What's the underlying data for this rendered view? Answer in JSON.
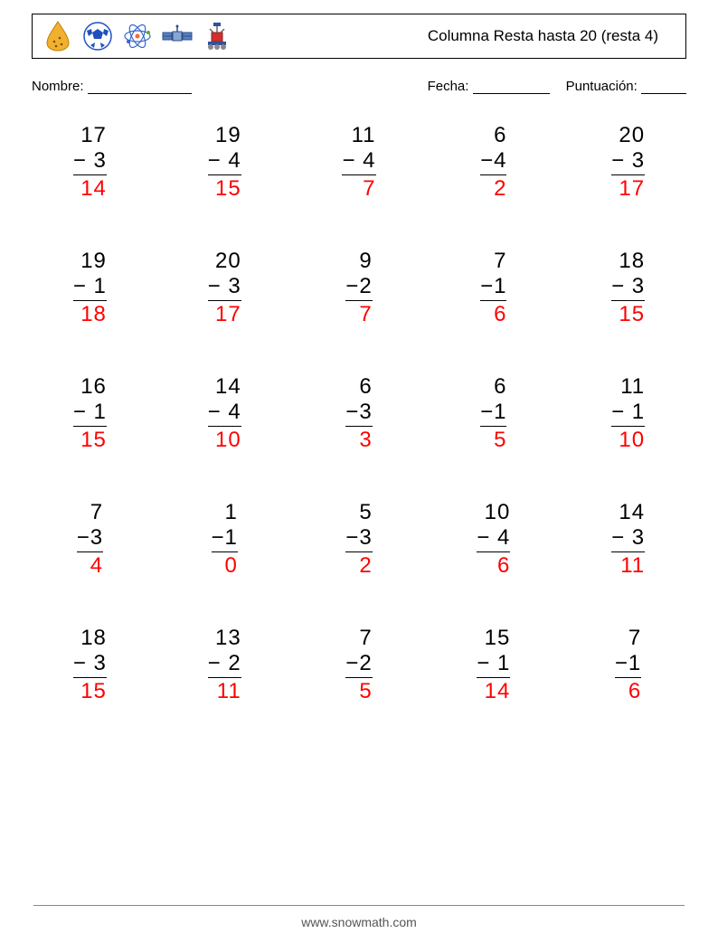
{
  "header": {
    "title": "Columna Resta hasta 20 (resta 4)",
    "icons": [
      {
        "name": "seed",
        "colors": [
          "#f0b030",
          "#c08000"
        ]
      },
      {
        "name": "soccer-ball",
        "colors": [
          "#ffffff",
          "#2050c0"
        ]
      },
      {
        "name": "atom",
        "colors": [
          "#3366cc",
          "#ff6633",
          "#66aa22"
        ]
      },
      {
        "name": "satellite",
        "colors": [
          "#5a7fbf",
          "#2a4f8f"
        ]
      },
      {
        "name": "rover",
        "colors": [
          "#d03030",
          "#3050a0",
          "#888888"
        ]
      }
    ]
  },
  "labels": {
    "name": "Nombre:",
    "date": "Fecha:",
    "score": "Puntuación:"
  },
  "style": {
    "answer_color": "#ff0000",
    "text_color": "#000000",
    "fontsize_problem": 24,
    "fontsize_title": 17,
    "operator": "−",
    "columns": 5,
    "rows": 5
  },
  "problems": [
    {
      "a": 17,
      "b": 3,
      "ans": 14,
      "pad": true
    },
    {
      "a": 19,
      "b": 4,
      "ans": 15,
      "pad": true
    },
    {
      "a": 11,
      "b": 4,
      "ans": 7,
      "pad": true
    },
    {
      "a": 6,
      "b": 4,
      "ans": 2,
      "pad": false
    },
    {
      "a": 20,
      "b": 3,
      "ans": 17,
      "pad": true
    },
    {
      "a": 19,
      "b": 1,
      "ans": 18,
      "pad": true
    },
    {
      "a": 20,
      "b": 3,
      "ans": 17,
      "pad": true
    },
    {
      "a": 9,
      "b": 2,
      "ans": 7,
      "pad": false
    },
    {
      "a": 7,
      "b": 1,
      "ans": 6,
      "pad": false
    },
    {
      "a": 18,
      "b": 3,
      "ans": 15,
      "pad": true
    },
    {
      "a": 16,
      "b": 1,
      "ans": 15,
      "pad": true
    },
    {
      "a": 14,
      "b": 4,
      "ans": 10,
      "pad": true
    },
    {
      "a": 6,
      "b": 3,
      "ans": 3,
      "pad": false
    },
    {
      "a": 6,
      "b": 1,
      "ans": 5,
      "pad": false
    },
    {
      "a": 11,
      "b": 1,
      "ans": 10,
      "pad": true
    },
    {
      "a": 7,
      "b": 3,
      "ans": 4,
      "pad": false
    },
    {
      "a": 1,
      "b": 1,
      "ans": 0,
      "pad": false
    },
    {
      "a": 5,
      "b": 3,
      "ans": 2,
      "pad": false
    },
    {
      "a": 10,
      "b": 4,
      "ans": 6,
      "pad": true
    },
    {
      "a": 14,
      "b": 3,
      "ans": 11,
      "pad": true
    },
    {
      "a": 18,
      "b": 3,
      "ans": 15,
      "pad": true
    },
    {
      "a": 13,
      "b": 2,
      "ans": 11,
      "pad": true
    },
    {
      "a": 7,
      "b": 2,
      "ans": 5,
      "pad": false
    },
    {
      "a": 15,
      "b": 1,
      "ans": 14,
      "pad": true
    },
    {
      "a": 7,
      "b": 1,
      "ans": 6,
      "pad": false
    }
  ],
  "footer": {
    "url": "www.snowmath.com"
  }
}
